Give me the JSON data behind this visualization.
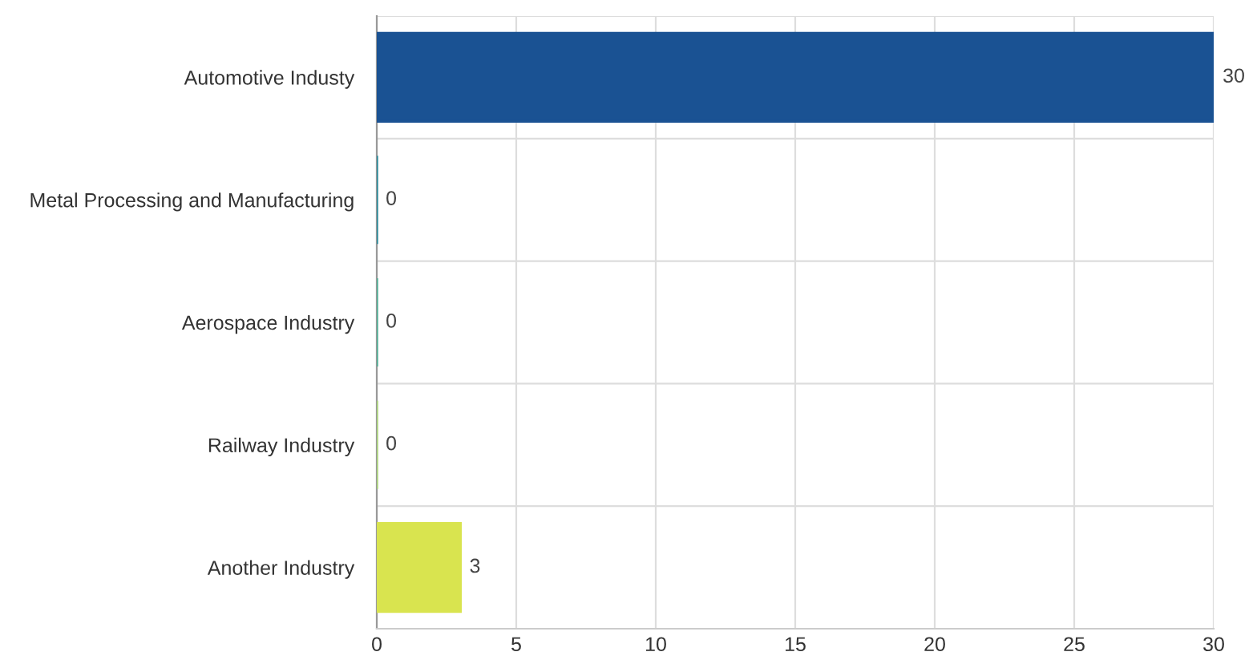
{
  "chart_data": {
    "type": "bar",
    "orientation": "horizontal",
    "categories": [
      "Automotive Industy",
      "Metal Processing and Manufacturing",
      "Aerospace Industry",
      "Railway Industry",
      "Another Industry"
    ],
    "values": [
      30,
      0,
      0,
      0,
      3
    ],
    "colors": [
      "#1a5293",
      "#2a8a9a",
      "#4fae95",
      "#a9d27a",
      "#d9e44f"
    ],
    "xlim": [
      0,
      30
    ],
    "xticks": [
      0,
      5,
      10,
      15,
      20,
      25,
      30
    ],
    "data_labels": true,
    "grid": true,
    "legend": false
  }
}
